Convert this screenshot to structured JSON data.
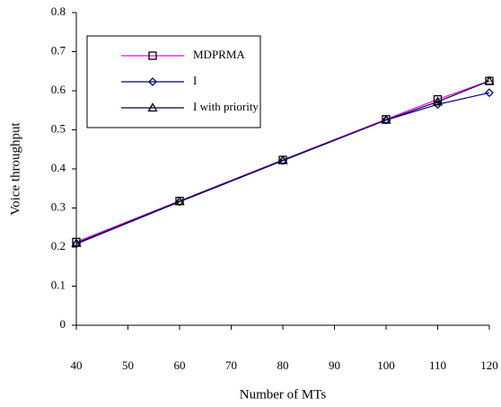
{
  "chart_data": {
    "type": "line",
    "x_label": "Number of MTs",
    "y_label": "Voice throughput",
    "x": [
      40,
      60,
      80,
      100,
      110,
      120
    ],
    "series": [
      {
        "name": "MDPRMA",
        "color": "#ff00ff",
        "marker": "square",
        "marker_color": "#000000",
        "values": [
          0.213,
          0.318,
          0.423,
          0.527,
          0.578,
          0.625
        ]
      },
      {
        "name": "I",
        "color": "#000080",
        "marker": "diamond",
        "marker_color": "#000080",
        "values": [
          0.208,
          0.316,
          0.421,
          0.525,
          0.565,
          0.595
        ]
      },
      {
        "name": "I with priority",
        "color": "#000040",
        "marker": "triangle",
        "marker_color": "#000000",
        "values": [
          0.21,
          0.317,
          0.422,
          0.525,
          0.572,
          0.625
        ]
      }
    ],
    "xlim": [
      40,
      120
    ],
    "xticks": [
      40,
      50,
      60,
      70,
      80,
      90,
      100,
      110,
      120
    ],
    "ylim": [
      0,
      0.8
    ],
    "yticks": [
      0,
      0.1,
      0.2,
      0.3,
      0.4,
      0.5,
      0.6,
      0.7,
      0.8
    ],
    "grid": false,
    "legend": "upper left"
  }
}
